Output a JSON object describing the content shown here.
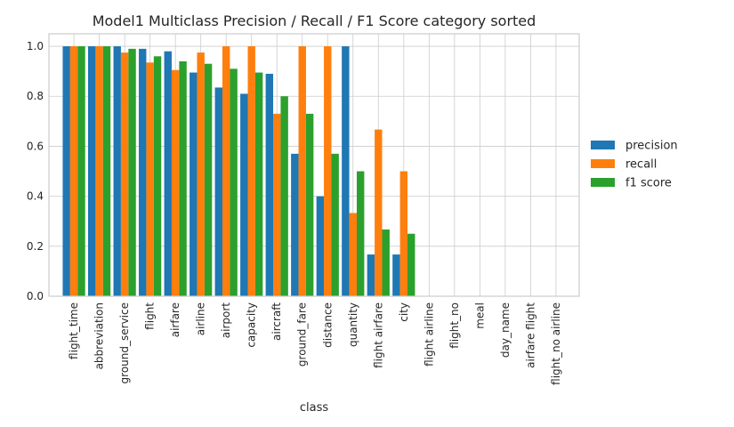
{
  "chart_data": {
    "type": "bar",
    "title": "Model1 Multiclass Precision / Recall / F1 Score category sorted",
    "xlabel": "class",
    "ylabel": "",
    "ylim": [
      0,
      1.05
    ],
    "yticks": [
      "0.0",
      "0.2",
      "0.4",
      "0.6",
      "0.8",
      "1.0"
    ],
    "grid": true,
    "legend_position": "center-right",
    "categories": [
      "flight_time",
      "abbreviation",
      "ground_service",
      "flight",
      "airfare",
      "airline",
      "airport",
      "capacity",
      "aircraft",
      "ground_fare",
      "distance",
      "quantity",
      "flight airfare",
      "city",
      "flight airline",
      "flight_no",
      "meal",
      "day_name",
      "airfare flight",
      "flight_no airline"
    ],
    "series": [
      {
        "name": "precision",
        "color": "#1f77b4",
        "values": [
          1.0,
          1.0,
          1.0,
          0.99,
          0.98,
          0.895,
          0.835,
          0.81,
          0.89,
          0.57,
          0.4,
          1.0,
          0.167,
          0.167,
          0,
          0,
          0,
          0,
          0,
          0
        ]
      },
      {
        "name": "recall",
        "color": "#ff7f0e",
        "values": [
          1.0,
          1.0,
          0.975,
          0.935,
          0.905,
          0.975,
          1.0,
          1.0,
          0.73,
          1.0,
          1.0,
          0.333,
          0.667,
          0.5,
          0,
          0,
          0,
          0,
          0,
          0
        ]
      },
      {
        "name": "f1 score",
        "color": "#2ca02c",
        "values": [
          1.0,
          1.0,
          0.99,
          0.96,
          0.94,
          0.93,
          0.91,
          0.895,
          0.8,
          0.73,
          0.57,
          0.5,
          0.267,
          0.25,
          0,
          0,
          0,
          0,
          0,
          0
        ]
      }
    ]
  }
}
